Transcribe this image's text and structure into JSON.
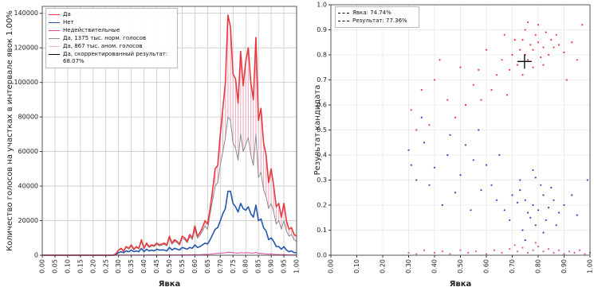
{
  "chart_data": [
    {
      "type": "line",
      "x_label": "Явка",
      "y_label": "Количество голосов на участках в интервале явок 1.00%",
      "xlim": [
        0,
        1
      ],
      "ylim": [
        0,
        144000
      ],
      "grid": true,
      "xticks": [
        {
          "value": 0,
          "label": "0.00"
        },
        {
          "value": 0.05,
          "label": "0.05"
        },
        {
          "value": 0.1,
          "label": "0.10"
        },
        {
          "value": 0.15,
          "label": "0.15"
        },
        {
          "value": 0.2,
          "label": "0.20"
        },
        {
          "value": 0.25,
          "label": "0.25"
        },
        {
          "value": 0.3,
          "label": "0.30"
        },
        {
          "value": 0.35,
          "label": "0.35"
        },
        {
          "value": 0.4,
          "label": "0.40"
        },
        {
          "value": 0.45,
          "label": "0.45"
        },
        {
          "value": 0.5,
          "label": "0.50"
        },
        {
          "value": 0.55,
          "label": "0.55"
        },
        {
          "value": 0.6,
          "label": "0.60"
        },
        {
          "value": 0.65,
          "label": "0.65"
        },
        {
          "value": 0.7,
          "label": "0.70"
        },
        {
          "value": 0.75,
          "label": "0.75"
        },
        {
          "value": 0.8,
          "label": "0.80"
        },
        {
          "value": 0.85,
          "label": "0.85"
        },
        {
          "value": 0.9,
          "label": "0.90"
        },
        {
          "value": 0.95,
          "label": "0.95"
        },
        {
          "value": 1,
          "label": "1.00"
        }
      ],
      "yticks": [
        0,
        20000,
        40000,
        60000,
        80000,
        100000,
        120000,
        140000
      ],
      "x": [
        0,
        0.01,
        0.02,
        0.03,
        0.04,
        0.05,
        0.06,
        0.07,
        0.08,
        0.09,
        0.1,
        0.11,
        0.12,
        0.13,
        0.14,
        0.15,
        0.16,
        0.17,
        0.18,
        0.19,
        0.2,
        0.21,
        0.22,
        0.23,
        0.24,
        0.25,
        0.26,
        0.27,
        0.28,
        0.29,
        0.3,
        0.31,
        0.32,
        0.33,
        0.34,
        0.35,
        0.36,
        0.37,
        0.38,
        0.39,
        0.4,
        0.41,
        0.42,
        0.43,
        0.44,
        0.45,
        0.46,
        0.47,
        0.48,
        0.49,
        0.5,
        0.51,
        0.52,
        0.53,
        0.54,
        0.55,
        0.56,
        0.57,
        0.58,
        0.59,
        0.6,
        0.61,
        0.62,
        0.63,
        0.64,
        0.65,
        0.66,
        0.67,
        0.68,
        0.69,
        0.7,
        0.71,
        0.72,
        0.73,
        0.74,
        0.75,
        0.76,
        0.77,
        0.78,
        0.79,
        0.8,
        0.81,
        0.82,
        0.83,
        0.84,
        0.85,
        0.86,
        0.87,
        0.88,
        0.89,
        0.9,
        0.91,
        0.92,
        0.93,
        0.94,
        0.95,
        0.96,
        0.97,
        0.98,
        0.99,
        1
      ],
      "series": [
        {
          "name": "Да",
          "color": "#e8393f",
          "width": 1.6,
          "values": [
            0,
            0,
            0,
            0,
            0,
            0,
            0,
            0,
            0,
            0,
            0,
            0,
            0,
            0,
            0,
            0,
            0,
            0,
            0,
            0,
            0,
            0,
            0,
            0,
            0,
            0,
            0,
            0,
            0,
            1000,
            3000,
            4000,
            2500,
            5000,
            4000,
            6000,
            3500,
            5000,
            4000,
            9000,
            4000,
            7000,
            5000,
            6000,
            5500,
            7000,
            6000,
            6500,
            7000,
            6000,
            11000,
            7000,
            9000,
            8000,
            6500,
            11000,
            10000,
            8000,
            12000,
            10000,
            17000,
            11000,
            13000,
            16000,
            20000,
            18000,
            27000,
            38000,
            50000,
            52000,
            70000,
            85000,
            100000,
            139000,
            132000,
            105000,
            102000,
            88000,
            118000,
            98000,
            112000,
            120000,
            100000,
            90000,
            126000,
            78000,
            85000,
            65000,
            58000,
            42000,
            50000,
            40000,
            28000,
            30000,
            22000,
            30000,
            20000,
            15000,
            16000,
            12000,
            11000
          ]
        },
        {
          "name": "Нет",
          "color": "#2257b0",
          "width": 1.6,
          "values": [
            0,
            0,
            0,
            0,
            0,
            0,
            0,
            0,
            0,
            0,
            0,
            0,
            0,
            0,
            0,
            0,
            0,
            0,
            0,
            0,
            0,
            0,
            0,
            0,
            0,
            0,
            0,
            0,
            0,
            500,
            1500,
            2000,
            1500,
            2500,
            2000,
            3000,
            2000,
            2500,
            2000,
            4000,
            2000,
            3500,
            2500,
            3000,
            2500,
            3500,
            3000,
            3000,
            3000,
            2500,
            4500,
            3000,
            4000,
            3500,
            3000,
            4500,
            4000,
            3500,
            4500,
            4000,
            6000,
            4500,
            5000,
            6000,
            7000,
            6500,
            9000,
            12000,
            15000,
            16000,
            20000,
            24000,
            27000,
            37000,
            37000,
            30000,
            28000,
            25000,
            30000,
            27000,
            26000,
            28000,
            24000,
            22000,
            29000,
            20000,
            21000,
            16000,
            14000,
            9000,
            10000,
            8000,
            5000,
            5000,
            3500,
            5000,
            3000,
            2000,
            2500,
            1500,
            1500
          ]
        },
        {
          "name": "Недействительные",
          "color": "#d9489a",
          "width": 1,
          "values": [
            0,
            0,
            0,
            0,
            0,
            0,
            0,
            0,
            0,
            0,
            0,
            0,
            0,
            0,
            0,
            0,
            0,
            0,
            0,
            0,
            0,
            0,
            0,
            0,
            0,
            0,
            0,
            0,
            0,
            50,
            100,
            150,
            100,
            150,
            100,
            200,
            100,
            150,
            100,
            200,
            100,
            150,
            150,
            150,
            150,
            200,
            150,
            150,
            200,
            150,
            250,
            200,
            200,
            200,
            150,
            250,
            250,
            200,
            300,
            250,
            400,
            300,
            300,
            400,
            500,
            450,
            600,
            800,
            1000,
            1000,
            1200,
            1300,
            1400,
            1800,
            1700,
            1400,
            1300,
            1200,
            1500,
            1300,
            1400,
            1500,
            1300,
            1200,
            1600,
            1000,
            1100,
            900,
            800,
            600,
            700,
            500,
            400,
            400,
            300,
            400,
            300,
            200,
            200,
            150,
            150
          ]
        },
        {
          "name": "Да, 1375 тыс. норм. голосов",
          "color": "#8c8c8c",
          "width": 1,
          "values": [
            0,
            0,
            0,
            0,
            0,
            0,
            0,
            0,
            0,
            0,
            0,
            0,
            0,
            0,
            0,
            0,
            0,
            0,
            0,
            0,
            0,
            0,
            0,
            0,
            0,
            0,
            0,
            0,
            0,
            900,
            2700,
            3600,
            2200,
            4500,
            3600,
            5400,
            3100,
            4500,
            3600,
            8000,
            3600,
            6300,
            4500,
            5400,
            5000,
            6300,
            5400,
            5800,
            6300,
            5400,
            9900,
            6300,
            8100,
            7200,
            5800,
            9900,
            9000,
            7200,
            10800,
            9000,
            15000,
            9900,
            11500,
            14000,
            17000,
            15000,
            24000,
            32000,
            40000,
            42000,
            52000,
            60000,
            68000,
            80000,
            78000,
            65000,
            62000,
            55000,
            70000,
            60000,
            64000,
            68000,
            58000,
            52000,
            70000,
            45000,
            48000,
            38000,
            34000,
            27000,
            30000,
            25000,
            18000,
            20000,
            15000,
            20000,
            14000,
            11000,
            12000,
            9000,
            8000
          ]
        },
        {
          "name": "Да, 867 тыс. аном. голосов",
          "color": "#f1b3c6",
          "style": "hatch",
          "values": [
            0,
            0,
            0,
            0,
            0,
            0,
            0,
            0,
            0,
            0,
            0,
            0,
            0,
            0,
            0,
            0,
            0,
            0,
            0,
            0,
            0,
            0,
            0,
            0,
            0,
            0,
            0,
            0,
            0,
            100,
            300,
            400,
            300,
            500,
            400,
            600,
            400,
            500,
            400,
            1000,
            400,
            700,
            500,
            600,
            500,
            700,
            600,
            700,
            700,
            600,
            1100,
            700,
            900,
            800,
            700,
            1100,
            1000,
            800,
            1200,
            1000,
            2000,
            1100,
            1500,
            2000,
            3000,
            3000,
            3000,
            6000,
            10000,
            10000,
            18000,
            25000,
            32000,
            59000,
            54000,
            40000,
            40000,
            33000,
            48000,
            38000,
            48000,
            52000,
            42000,
            38000,
            56000,
            33000,
            37000,
            27000,
            24000,
            15000,
            20000,
            15000,
            10000,
            10000,
            7000,
            10000,
            6000,
            4000,
            4000,
            3000,
            3000
          ]
        },
        {
          "name": "Да, скорректированный результат: 68.07%",
          "color": "#000000"
        }
      ]
    },
    {
      "type": "scatter",
      "x_label": "Явка",
      "y_label": "Результат кандидата",
      "xlim": [
        0,
        1
      ],
      "ylim": [
        0,
        1
      ],
      "grid": true,
      "xticks": [
        {
          "value": 0,
          "label": "0.00"
        },
        {
          "value": 0.1,
          "label": "0.10"
        },
        {
          "value": 0.2,
          "label": "0.20"
        },
        {
          "value": 0.3,
          "label": "0.30"
        },
        {
          "value": 0.4,
          "label": "0.40"
        },
        {
          "value": 0.5,
          "label": "0.50"
        },
        {
          "value": 0.6,
          "label": "0.60"
        },
        {
          "value": 0.7,
          "label": "0.70"
        },
        {
          "value": 0.8,
          "label": "0.80"
        },
        {
          "value": 0.9,
          "label": "0.90"
        },
        {
          "value": 1,
          "label": "1.00"
        }
      ],
      "yticks": [
        {
          "value": 0,
          "label": "0.0"
        },
        0.1,
        0.2,
        0.3,
        0.4,
        0.5,
        0.6,
        0.7,
        0.8,
        0.9,
        {
          "value": 1,
          "label": "1.0"
        }
      ],
      "series": [
        {
          "color": "#ee3b3b",
          "x": [
            0.78,
            0.75,
            0.8,
            0.82,
            0.76,
            0.74,
            0.79,
            0.84,
            0.72,
            0.81,
            0.77,
            0.85,
            0.73,
            0.83,
            0.7,
            0.86,
            0.75,
            0.78,
            0.88,
            0.69,
            0.8,
            0.74,
            0.9,
            0.66,
            0.82,
            0.76,
            0.87,
            0.71,
            0.93,
            0.64,
            0.55,
            0.5,
            0.45,
            0.4,
            0.35,
            0.31,
            0.6,
            0.58,
            0.48,
            0.38,
            0.62,
            0.52,
            0.42,
            0.33,
            0.67,
            0.95,
            0.97,
            0.91,
            0.68,
            0.57
          ],
          "y": [
            0.82,
            0.8,
            0.85,
            0.83,
            0.78,
            0.86,
            0.88,
            0.8,
            0.76,
            0.79,
            0.84,
            0.86,
            0.82,
            0.89,
            0.8,
            0.83,
            0.9,
            0.75,
            0.84,
            0.74,
            0.92,
            0.72,
            0.81,
            0.78,
            0.76,
            0.93,
            0.88,
            0.86,
            0.85,
            0.72,
            0.68,
            0.75,
            0.62,
            0.7,
            0.66,
            0.58,
            0.82,
            0.62,
            0.55,
            0.52,
            0.66,
            0.6,
            0.78,
            0.5,
            0.88,
            0.78,
            0.92,
            0.7,
            0.64,
            0.74
          ]
        },
        {
          "color": "#2a4fb5",
          "x": [
            0.78,
            0.8,
            0.75,
            0.82,
            0.77,
            0.84,
            0.73,
            0.79,
            0.86,
            0.81,
            0.76,
            0.74,
            0.83,
            0.72,
            0.88,
            0.7,
            0.85,
            0.79,
            0.9,
            0.67,
            0.75,
            0.82,
            0.87,
            0.73,
            0.93,
            0.64,
            0.78,
            0.69,
            0.95,
            0.62,
            0.3,
            0.33,
            0.36,
            0.4,
            0.45,
            0.5,
            0.55,
            0.58,
            0.48,
            0.43,
            0.35,
            0.52,
            0.6,
            0.38,
            0.31,
            0.57,
            0.65,
            0.99,
            0.46,
            0.54
          ],
          "y": [
            0.2,
            0.18,
            0.22,
            0.24,
            0.15,
            0.19,
            0.26,
            0.12,
            0.22,
            0.28,
            0.17,
            0.1,
            0.14,
            0.21,
            0.17,
            0.24,
            0.27,
            0.31,
            0.2,
            0.18,
            0.06,
            0.09,
            0.12,
            0.3,
            0.24,
            0.22,
            0.34,
            0.14,
            0.16,
            0.28,
            0.42,
            0.3,
            0.45,
            0.35,
            0.4,
            0.32,
            0.38,
            0.26,
            0.25,
            0.2,
            0.55,
            0.44,
            0.36,
            0.28,
            0.36,
            0.5,
            0.4,
            0.3,
            0.48,
            0.18
          ]
        },
        {
          "color": "#e055b0",
          "x": [
            0.3,
            0.33,
            0.36,
            0.4,
            0.43,
            0.46,
            0.5,
            0.53,
            0.56,
            0.6,
            0.63,
            0.66,
            0.69,
            0.72,
            0.74,
            0.76,
            0.78,
            0.8,
            0.82,
            0.84,
            0.86,
            0.88,
            0.9,
            0.92,
            0.94,
            0.96,
            0.98,
            1.0,
            0.71,
            0.79
          ],
          "y": [
            0.01,
            0.005,
            0.02,
            0.01,
            0.015,
            0.005,
            0.02,
            0.01,
            0.015,
            0.005,
            0.02,
            0.01,
            0.025,
            0.015,
            0.03,
            0.01,
            0.02,
            0.035,
            0.015,
            0.025,
            0.01,
            0.02,
            0.005,
            0.015,
            0.01,
            0.02,
            0.005,
            0.01,
            0.04,
            0.05
          ]
        }
      ],
      "annotations": [
        {
          "label": "Явка: 74.74%",
          "value": 0.7474,
          "axis": "x"
        },
        {
          "label": "Результат: 77.36%",
          "value": 0.7736,
          "axis": "y"
        }
      ]
    }
  ]
}
